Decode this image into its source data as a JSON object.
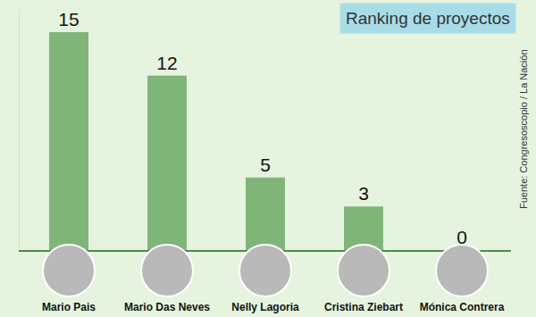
{
  "chart_data": {
    "type": "bar",
    "title": "Ranking de proyectos",
    "annotations": [
      "Fuente: Congresoscopio / La Nación"
    ],
    "categories": [
      "Mario Pais",
      "Mario Das Neves",
      "Nelly Lagoria",
      "Cristina Ziebart",
      "Mónica Contrera"
    ],
    "values": [
      15,
      12,
      5,
      3,
      0
    ],
    "color": "#80b57a",
    "ylim": [
      0,
      16.6
    ],
    "yticks": [],
    "grid": false,
    "data_labels": true,
    "tick_labels": "x"
  }
}
